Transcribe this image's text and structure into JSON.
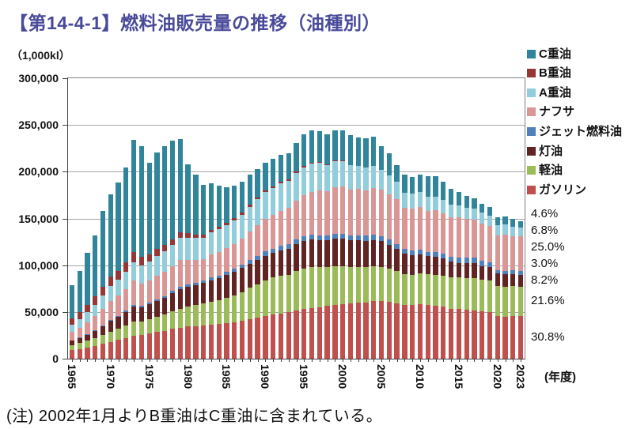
{
  "title": "【第14-4-1】燃料油販売量の推移（油種別）",
  "unit_label": "（1,000kl）",
  "x_axis_unit": "(年度)",
  "note": "(注) 2002年1月よりB重油はC重油に含まれている。",
  "chart_data": {
    "type": "bar",
    "stacked": true,
    "title": "燃料油販売量の推移（油種別）",
    "ylabel": "(1,000kl)",
    "xlabel": "(年度)",
    "ylim": [
      0,
      300000
    ],
    "grid": true,
    "legend_position": "right",
    "y_ticks": [
      {
        "value": 0,
        "label": "0"
      },
      {
        "value": 50000,
        "label": "50,000"
      },
      {
        "value": 100000,
        "label": "100,000"
      },
      {
        "value": 150000,
        "label": "150,000"
      },
      {
        "value": 200000,
        "label": "200,000"
      },
      {
        "value": 250000,
        "label": "250,000"
      },
      {
        "value": 300000,
        "label": "300,000"
      }
    ],
    "x_tick_years": [
      1965,
      1970,
      1975,
      1980,
      1985,
      1990,
      1995,
      2000,
      2005,
      2010,
      2015,
      2020,
      2023
    ],
    "years": [
      1965,
      1966,
      1967,
      1968,
      1969,
      1970,
      1971,
      1972,
      1973,
      1974,
      1975,
      1976,
      1977,
      1978,
      1979,
      1980,
      1981,
      1982,
      1983,
      1984,
      1985,
      1986,
      1987,
      1988,
      1989,
      1990,
      1991,
      1992,
      1993,
      1994,
      1995,
      1996,
      1997,
      1998,
      1999,
      2000,
      2001,
      2002,
      2003,
      2004,
      2005,
      2006,
      2007,
      2008,
      2009,
      2010,
      2011,
      2012,
      2013,
      2014,
      2015,
      2016,
      2017,
      2018,
      2019,
      2020,
      2021,
      2022,
      2023
    ],
    "series_bottom_to_top": [
      {
        "name": "ガソリン",
        "color": "#c0504d",
        "values": [
          9300,
          10500,
          12000,
          13800,
          15800,
          18000,
          20000,
          22300,
          24800,
          25200,
          27000,
          28400,
          29800,
          31800,
          33300,
          34400,
          34900,
          35700,
          36500,
          37000,
          38000,
          39200,
          40500,
          42300,
          44000,
          45800,
          47200,
          48600,
          49600,
          51500,
          52900,
          54100,
          55100,
          56600,
          57900,
          58400,
          58900,
          59600,
          59800,
          61500,
          61400,
          60600,
          59200,
          57300,
          57500,
          58200,
          57200,
          56600,
          55500,
          53300,
          53100,
          52500,
          51900,
          50600,
          49800,
          45400,
          44800,
          45500,
          45400
        ]
      },
      {
        "name": "軽油",
        "color": "#9bbb59",
        "values": [
          5500,
          6300,
          7300,
          8400,
          9700,
          11000,
          12100,
          13400,
          14900,
          14600,
          15200,
          16200,
          17200,
          18600,
          20100,
          21400,
          22200,
          23200,
          24300,
          25400,
          27000,
          28600,
          30800,
          33400,
          35800,
          38100,
          39600,
          40300,
          40400,
          42000,
          43200,
          43800,
          43200,
          41600,
          41200,
          40100,
          39100,
          38300,
          38100,
          37700,
          36900,
          35900,
          34800,
          33400,
          32400,
          32900,
          32900,
          33200,
          33400,
          33500,
          33600,
          33800,
          34000,
          33900,
          33900,
          32200,
          32100,
          32400,
          31900
        ]
      },
      {
        "name": "灯油",
        "color": "#622423",
        "values": [
          4300,
          5200,
          6300,
          7600,
          9300,
          11300,
          12600,
          14200,
          16000,
          15100,
          16100,
          17200,
          18100,
          19700,
          21200,
          20800,
          21300,
          21900,
          23000,
          23400,
          24600,
          25100,
          25600,
          26100,
          26200,
          26400,
          26400,
          27000,
          27600,
          29100,
          29600,
          29700,
          28900,
          28400,
          29500,
          30100,
          28800,
          28900,
          28400,
          27900,
          27500,
          25400,
          23400,
          21400,
          20800,
          20400,
          19600,
          19300,
          18400,
          16900,
          15900,
          16200,
          16400,
          14800,
          14200,
          14000,
          13400,
          12500,
          12100
        ]
      },
      {
        "name": "ジェット燃料油",
        "color": "#4f81bd",
        "values": [
          700,
          800,
          900,
          1000,
          1100,
          1200,
          1300,
          1400,
          1500,
          1600,
          1800,
          1900,
          2100,
          2300,
          2500,
          2900,
          3000,
          3100,
          3200,
          3300,
          3400,
          3500,
          3700,
          3900,
          4100,
          4400,
          4500,
          4600,
          4700,
          4800,
          4900,
          5000,
          5000,
          5000,
          5100,
          5100,
          5100,
          5200,
          5200,
          5300,
          5400,
          5400,
          5300,
          5100,
          4900,
          5100,
          4800,
          5000,
          5200,
          5300,
          5500,
          5500,
          5600,
          5700,
          5500,
          3200,
          3500,
          4300,
          4400
        ]
      },
      {
        "name": "ナフサ",
        "color": "#d99694",
        "values": [
          8600,
          10200,
          12200,
          14600,
          17400,
          20300,
          21300,
          23400,
          26900,
          24200,
          23400,
          25300,
          25900,
          26500,
          28300,
          25800,
          23900,
          22400,
          24400,
          25400,
          25400,
          26600,
          28100,
          30400,
          32900,
          35300,
          36400,
          37900,
          38900,
          41900,
          44400,
          45900,
          47900,
          47400,
          49400,
          50400,
          48900,
          49400,
          48900,
          50400,
          49400,
          48900,
          48400,
          44400,
          45400,
          45900,
          43400,
          44400,
          43400,
          42400,
          43400,
          41400,
          40900,
          39400,
          38400,
          37400,
          38900,
          36400,
          36900
        ]
      },
      {
        "name": "A重油",
        "color": "#92cddc",
        "values": [
          8100,
          9400,
          10900,
          12500,
          14300,
          16000,
          16900,
          17900,
          19300,
          19000,
          20300,
          21200,
          21900,
          23000,
          24100,
          24400,
          23700,
          23100,
          23500,
          23800,
          24100,
          24700,
          25400,
          26400,
          27400,
          28400,
          28700,
          28900,
          28900,
          29400,
          29700,
          29900,
          29400,
          28400,
          28100,
          27600,
          26100,
          25100,
          24100,
          23100,
          21600,
          19600,
          18100,
          16100,
          15600,
          15500,
          15100,
          14900,
          14400,
          13400,
          12700,
          12400,
          12200,
          11600,
          11200,
          10900,
          10700,
          10300,
          10000
        ]
      },
      {
        "name": "B重油",
        "color": "#953734",
        "values": [
          6400,
          7100,
          7900,
          8600,
          9300,
          9900,
          10000,
          10200,
          10400,
          9400,
          8000,
          7200,
          6600,
          6000,
          5500,
          4600,
          3900,
          3300,
          3000,
          2800,
          2600,
          2400,
          2300,
          2200,
          2100,
          2000,
          1900,
          1700,
          1500,
          1400,
          1200,
          1100,
          1000,
          900,
          700,
          600,
          400,
          0,
          0,
          0,
          0,
          0,
          0,
          0,
          0,
          0,
          0,
          0,
          0,
          0,
          0,
          0,
          0,
          0,
          0,
          0,
          0,
          0,
          0
        ]
      },
      {
        "name": "C重油",
        "color": "#31859b",
        "values": [
          35600,
          44500,
          55500,
          65500,
          81000,
          88500,
          94000,
          102000,
          120000,
          118000,
          98000,
          103000,
          106000,
          105000,
          100000,
          74000,
          64000,
          53000,
          50000,
          44000,
          38000,
          35000,
          33000,
          32000,
          30000,
          29000,
          29000,
          29000,
          28000,
          31000,
          34000,
          35000,
          33000,
          31500,
          32000,
          32000,
          32000,
          30500,
          31000,
          31500,
          25000,
          24000,
          18000,
          19000,
          18000,
          19000,
          22000,
          22000,
          19000,
          17000,
          14500,
          12000,
          11000,
          10000,
          9000,
          8000,
          9000,
          8000,
          6800
        ]
      }
    ],
    "legend_top_to_bottom": [
      {
        "label": "C重油",
        "color": "#31859b"
      },
      {
        "label": "B重油",
        "color": "#953734"
      },
      {
        "label": "A重油",
        "color": "#92cddc"
      },
      {
        "label": "ナフサ",
        "color": "#d99694"
      },
      {
        "label": "ジェット燃料油",
        "color": "#4f81bd"
      },
      {
        "label": "灯油",
        "color": "#622423"
      },
      {
        "label": "軽油",
        "color": "#9bbb59"
      },
      {
        "label": "ガソリン",
        "color": "#c0504d"
      }
    ],
    "share_labels_last_year": [
      {
        "series": "C重油",
        "text": "4.6%"
      },
      {
        "series": "A重油",
        "text": "6.8%"
      },
      {
        "series": "ナフサ",
        "text": "25.0%"
      },
      {
        "series": "ジェット燃料油",
        "text": "3.0%"
      },
      {
        "series": "灯油",
        "text": "8.2%"
      },
      {
        "series": "軽油",
        "text": "21.6%"
      },
      {
        "series": "ガソリン",
        "text": "30.8%"
      }
    ]
  },
  "colors": {
    "title": "#4a4a9b",
    "gridline": "#a6a6a6",
    "axis": "#404040",
    "background": "#ffffff"
  }
}
